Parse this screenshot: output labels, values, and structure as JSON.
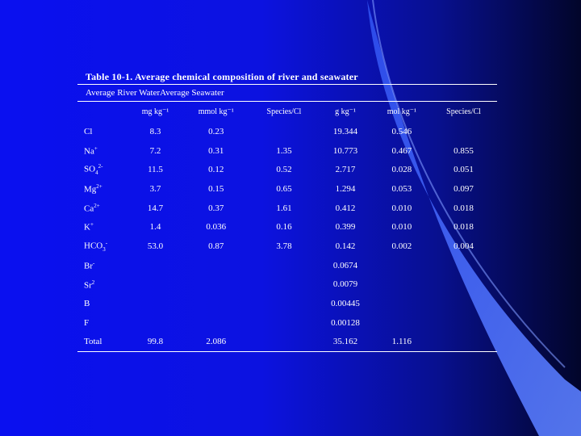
{
  "table": {
    "title": "Table 10-1. Average chemical composition of river and seawater",
    "subtitle": "Average River WaterAverage Seawater",
    "columns": [
      "",
      "mg kg⁻¹",
      "mmol kg⁻¹",
      "Species/Cl",
      "g kg⁻¹",
      "mol kg⁻¹",
      "Species/Cl"
    ],
    "rows": [
      {
        "species": "Cl",
        "sup": "",
        "sub": "",
        "values": [
          "8.3",
          "0.23",
          "",
          "19.344",
          "0.546",
          ""
        ]
      },
      {
        "species": "Na",
        "sup": "+",
        "sub": "",
        "values": [
          "7.2",
          "0.31",
          "1.35",
          "10.773",
          "0.467",
          "0.855"
        ]
      },
      {
        "species": "SO",
        "sup": "2-",
        "sub": "4",
        "values": [
          "11.5",
          "0.12",
          "0.52",
          "2.717",
          "0.028",
          "0.051"
        ]
      },
      {
        "species": "Mg",
        "sup": "2+",
        "sub": "",
        "values": [
          "3.7",
          "0.15",
          "0.65",
          "1.294",
          "0.053",
          "0.097"
        ]
      },
      {
        "species": "Ca",
        "sup": "2+",
        "sub": "",
        "values": [
          "14.7",
          "0.37",
          "1.61",
          "0.412",
          "0.010",
          "0.018"
        ]
      },
      {
        "species": "K",
        "sup": "+",
        "sub": "",
        "values": [
          "1.4",
          "0.036",
          "0.16",
          "0.399",
          "0.010",
          "0.018"
        ]
      },
      {
        "species": "HCO",
        "sup": "-",
        "sub": "3",
        "values": [
          "53.0",
          "0.87",
          "3.78",
          "0.142",
          "0.002",
          "0.004"
        ]
      },
      {
        "species": "Br",
        "sup": "-",
        "sub": "",
        "values": [
          "",
          "",
          "",
          "0.0674",
          "",
          ""
        ]
      },
      {
        "species": "Sr",
        "sup": "2",
        "sub": "",
        "values": [
          "",
          "",
          "",
          "0.0079",
          "",
          ""
        ]
      },
      {
        "species": "B",
        "sup": "",
        "sub": "",
        "values": [
          "",
          "",
          "",
          "0.00445",
          "",
          ""
        ]
      },
      {
        "species": "F",
        "sup": "",
        "sub": "",
        "values": [
          "",
          "",
          "",
          "0.00128",
          "",
          ""
        ]
      },
      {
        "species": "Total",
        "sup": "",
        "sub": "",
        "values": [
          "99.8",
          "2.086",
          "",
          "35.162",
          "1.116",
          ""
        ]
      }
    ]
  },
  "colors": {
    "background_left": "#0a10f0",
    "background_right": "#02052a",
    "swoosh": "#3a62f8",
    "swoosh_highlight": "#5c80ff",
    "text": "#ffffff"
  }
}
